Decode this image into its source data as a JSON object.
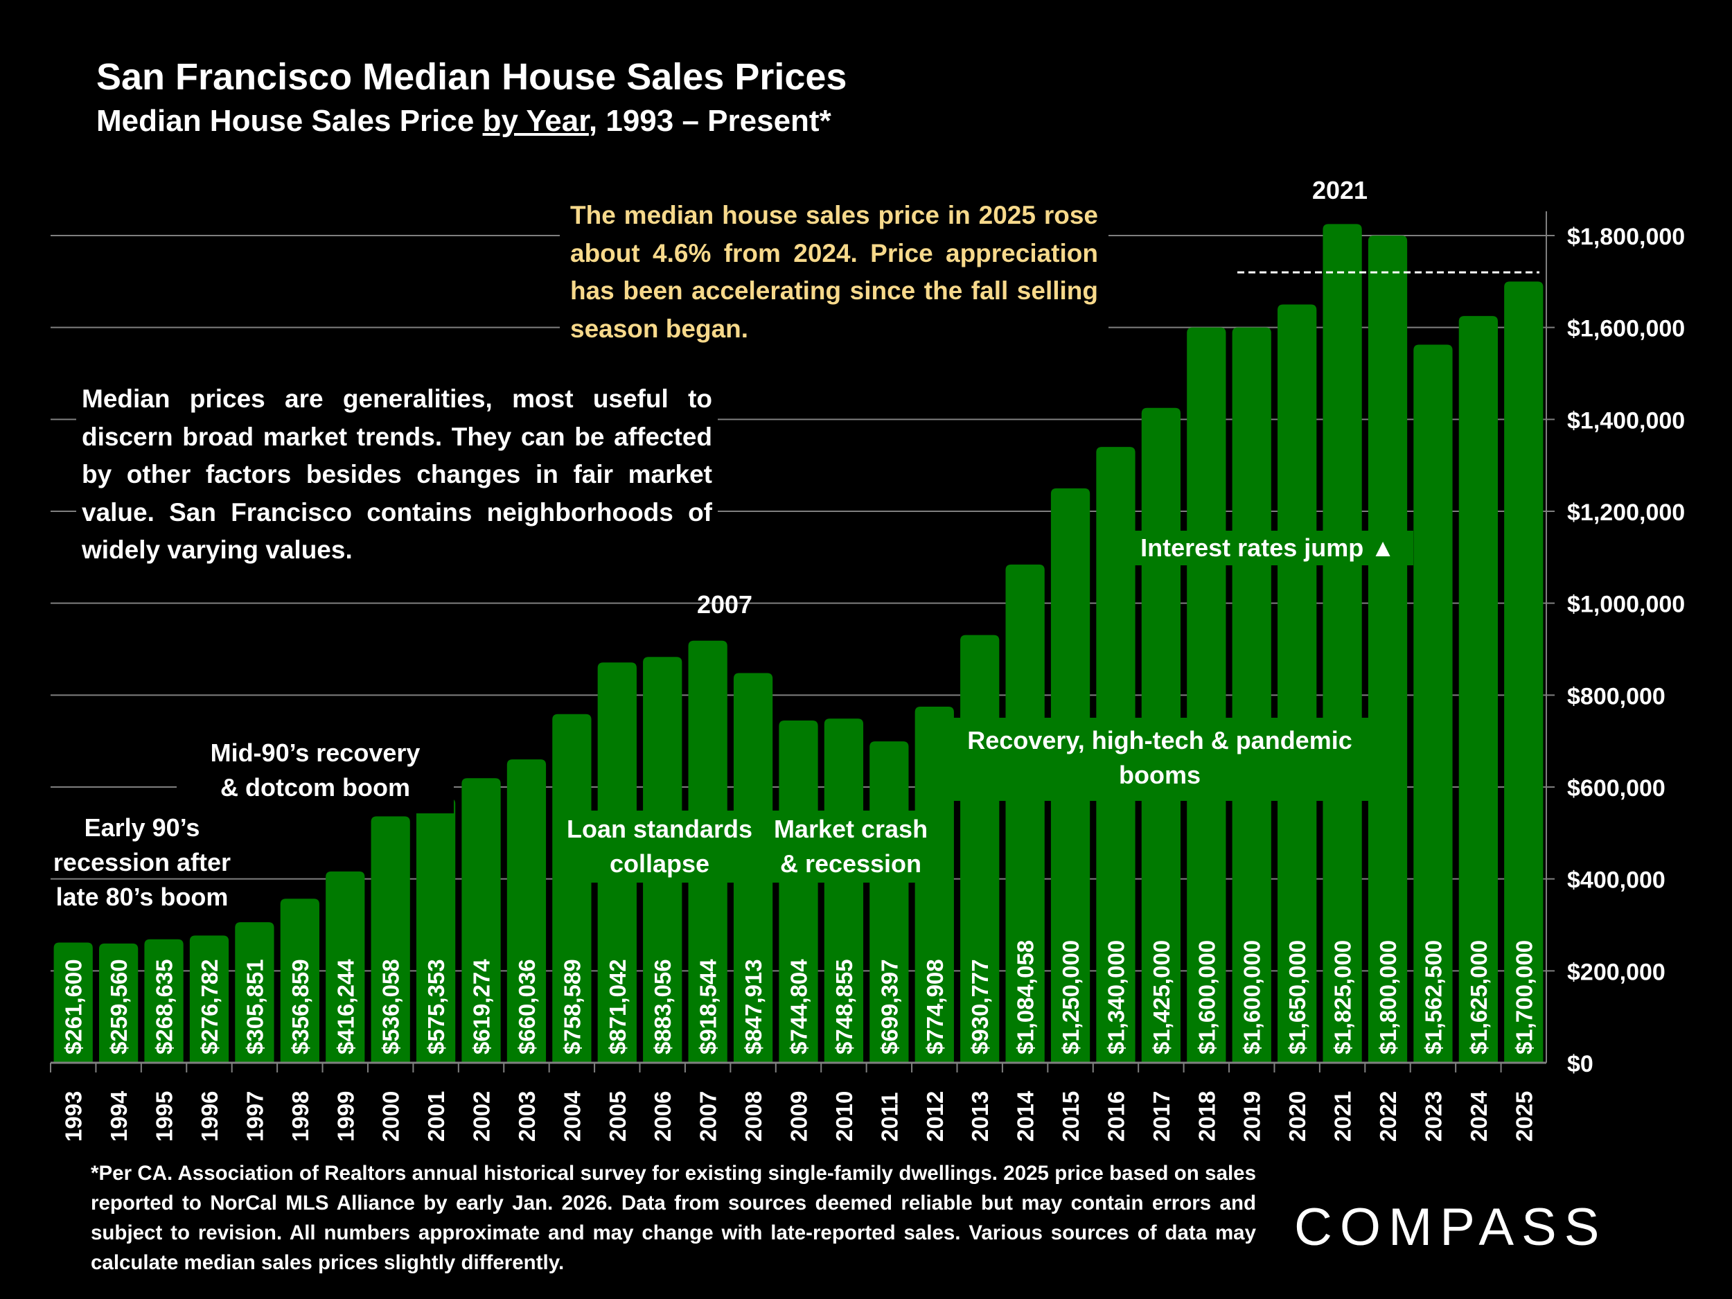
{
  "title": "San Francisco Median House Sales Prices",
  "subtitle": {
    "before": "Median House Sales Price ",
    "underlined": "by Year",
    "after": ", 1993 – Present*"
  },
  "callout_top": "The median house sales price in 2025 rose about 4.6% from 2024. Price appreciation has been accelerating since the fall selling season began.",
  "callout_left": "Median prices are generalities, most useful to discern broad market trends. They can be affected by other factors besides changes in fair market value. San Francisco contains neighborhoods of widely varying values.",
  "footnote": "*Per CA. Association of Realtors annual historical survey for existing single-family dwellings. 2025 price based on sales reported to NorCal MLS Alliance by early Jan. 2026. Data from sources deemed reliable but may contain errors and subject to revision. All numbers approximate and may change with late-reported sales. Various sources of data may calculate median sales prices slightly differently.",
  "logo": "COMPASS",
  "colors": {
    "background": "#000000",
    "bar": "#007a00",
    "text": "#ffffff",
    "callout": "#f7d98b",
    "grid": "#808080"
  },
  "chart_data": {
    "type": "bar",
    "title": "San Francisco Median House Sales Prices",
    "categories": [
      "1993",
      "1994",
      "1995",
      "1996",
      "1997",
      "1998",
      "1999",
      "2000",
      "2001",
      "2002",
      "2003",
      "2004",
      "2005",
      "2006",
      "2007",
      "2008",
      "2009",
      "2010",
      "2011",
      "2012",
      "2013",
      "2014",
      "2015",
      "2016",
      "2017",
      "2018",
      "2019",
      "2020",
      "2021",
      "2022",
      "2023",
      "2024",
      "2025"
    ],
    "values": [
      261600,
      259560,
      268635,
      276782,
      305851,
      356859,
      416244,
      536058,
      575353,
      619274,
      660036,
      758589,
      871042,
      883056,
      918544,
      847913,
      744804,
      748855,
      699397,
      774908,
      930777,
      1084058,
      1250000,
      1340000,
      1425000,
      1600000,
      1600000,
      1650000,
      1825000,
      1800000,
      1562500,
      1625000,
      1700000
    ],
    "data_labels": [
      "$261,600",
      "$259,560",
      "$268,635",
      "$276,782",
      "$305,851",
      "$356,859",
      "$416,244",
      "$536,058",
      "$575,353",
      "$619,274",
      "$660,036",
      "$758,589",
      "$871,042",
      "$883,056",
      "$918,544",
      "$847,913",
      "$744,804",
      "$748,855",
      "$699,397",
      "$774,908",
      "$930,777",
      "$1,084,058",
      "$1,250,000",
      "$1,340,000",
      "$1,425,000",
      "$1,600,000",
      "$1,600,000",
      "$1,650,000",
      "$1,825,000",
      "$1,800,000",
      "$1,562,500",
      "$1,625,000",
      "$1,700,000"
    ],
    "ylim": [
      0,
      1850000
    ],
    "y_axis_side": "right",
    "y_ticks": [
      0,
      200000,
      400000,
      600000,
      800000,
      1000000,
      1200000,
      1400000,
      1600000,
      1800000
    ],
    "y_tick_labels": [
      "$0",
      "$200,000",
      "$400,000",
      "$600,000",
      "$800,000",
      "$1,000,000",
      "$1,200,000",
      "$1,400,000",
      "$1,600,000",
      "$1,800,000"
    ],
    "grid": true,
    "reference_line": {
      "style": "dashed",
      "value": 1720000,
      "from": "2019",
      "to": "2025"
    },
    "annotations": {
      "peak_2007": "2007",
      "peak_2021": "2021",
      "early90s": [
        "Early 90’s",
        "recession after",
        "late 80’s boom"
      ],
      "mid90s": [
        "Mid-90’s recovery",
        "& dotcom boom"
      ],
      "loan": [
        "Loan standards",
        "collapse"
      ],
      "crash": [
        "Market crash",
        "& recession"
      ],
      "recovery": [
        "Recovery, high-tech & pandemic",
        "booms"
      ],
      "rates": "Interest rates jump ▲"
    }
  }
}
